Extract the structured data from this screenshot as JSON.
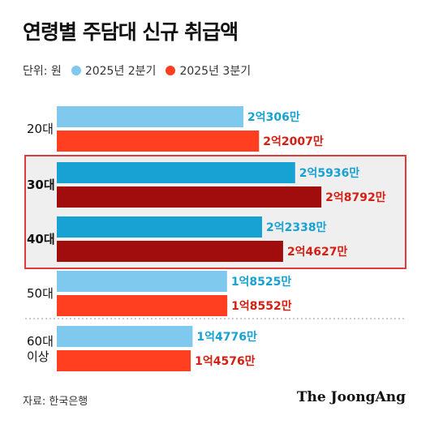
{
  "title": "연령별 주담대 신규 취급액",
  "legend": {
    "unit_label": "단위: 원",
    "items": [
      {
        "label": "2025년 2분기",
        "color": "#7fc8ee"
      },
      {
        "label": "2025년 3분기",
        "color": "#ff3f1f"
      }
    ]
  },
  "source": "자료: 한국은행",
  "brand": "The JoongAng",
  "chart_data": {
    "type": "bar",
    "orientation": "horizontal",
    "categories": [
      "20대",
      "30대",
      "40대",
      "50대",
      "60대 이상"
    ],
    "series": [
      {
        "name": "2025년 2분기",
        "values": [
          2.0306,
          2.5936,
          2.2338,
          1.8525,
          1.4776
        ],
        "labels": [
          "2억306만",
          "2억5936만",
          "2억2338만",
          "1억8525만",
          "1억4776만"
        ]
      },
      {
        "name": "2025년 3분기",
        "values": [
          2.2007,
          2.8792,
          2.4627,
          1.8552,
          1.4576
        ],
        "labels": [
          "2억2007만",
          "2억8792만",
          "2억4627만",
          "1억8552만",
          "1억4576만"
        ]
      }
    ],
    "highlighted": [
      "30대",
      "40대"
    ],
    "colors": {
      "q2": "#7fc8ee",
      "q3": "#ff3f1f",
      "q2_highlight": "#17a2d3",
      "q3_highlight": "#a10d0d",
      "q2_text": "#17a2d3",
      "q3_text": "#d41f13",
      "highlight_border": "#e03a3a",
      "highlight_bg": "#efefef"
    }
  }
}
